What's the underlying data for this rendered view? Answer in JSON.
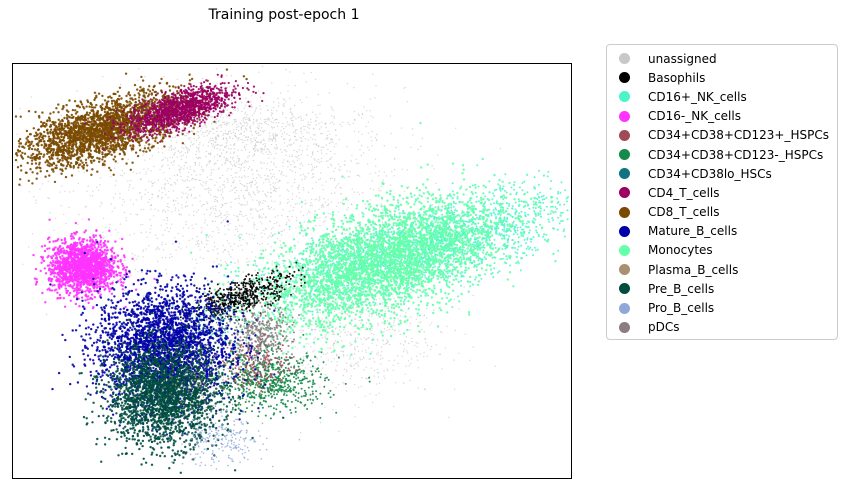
{
  "chart_data": {
    "type": "scatter",
    "title": "Training post-epoch 1",
    "xlabel": "",
    "ylabel": "",
    "axis_ticks": false,
    "grid": false,
    "legend_placement": "outside-right",
    "legend": [
      {
        "name": "unassigned",
        "color": "#c8c8c8"
      },
      {
        "name": "Basophils",
        "color": "#000000"
      },
      {
        "name": "CD16+_NK_cells",
        "color": "#4cf5c8"
      },
      {
        "name": "CD16-_NK_cells",
        "color": "#ff33ff"
      },
      {
        "name": "CD34+CD38+CD123+_HSPCs",
        "color": "#a04a55"
      },
      {
        "name": "CD34+CD38+CD123-_HSPCs",
        "color": "#168a4a"
      },
      {
        "name": "CD34+CD38lo_HSCs",
        "color": "#117280"
      },
      {
        "name": "CD4_T_cells",
        "color": "#9c0060"
      },
      {
        "name": "CD8_T_cells",
        "color": "#7a4a00"
      },
      {
        "name": "Mature_B_cells",
        "color": "#0000a8"
      },
      {
        "name": "Monocytes",
        "color": "#66ffaa"
      },
      {
        "name": "Plasma_B_cells",
        "color": "#a89070"
      },
      {
        "name": "Pre_B_cells",
        "color": "#004d40"
      },
      {
        "name": "Pro_B_cells",
        "color": "#8fa8d8"
      },
      {
        "name": "pDCs",
        "color": "#8a7e80"
      }
    ],
    "xlim": [
      0,
      100
    ],
    "ylim": [
      0,
      100
    ],
    "clusters": [
      {
        "name": "unassigned",
        "cx": 40,
        "cy": 70,
        "sx": 15,
        "sy": 12,
        "angle": 0,
        "n": 1800,
        "size": 0.7,
        "alpha": 0.7
      },
      {
        "name": "unassigned",
        "cx": 60,
        "cy": 35,
        "sx": 8,
        "sy": 8,
        "angle": 0,
        "n": 600,
        "size": 0.7,
        "alpha": 0.7
      },
      {
        "name": "unassigned",
        "cx": 42,
        "cy": 84,
        "sx": 9,
        "sy": 4,
        "angle": 0,
        "n": 500,
        "size": 0.7,
        "alpha": 0.7
      },
      {
        "name": "CD16+_NK_cells",
        "cx": 72,
        "cy": 55,
        "sx": 15,
        "sy": 4.5,
        "angle": 22,
        "n": 2600,
        "size": 1.0,
        "alpha": 0.85
      },
      {
        "name": "Monocytes",
        "cx": 66,
        "cy": 52,
        "sx": 12,
        "sy": 6,
        "angle": 30,
        "n": 3200,
        "size": 1.2,
        "alpha": 0.9
      },
      {
        "name": "CD8_T_cells",
        "cx": 16,
        "cy": 84,
        "sx": 8,
        "sy": 3.2,
        "angle": 25,
        "n": 2400,
        "size": 1.2,
        "alpha": 0.9
      },
      {
        "name": "CD4_T_cells",
        "cx": 30,
        "cy": 89,
        "sx": 5,
        "sy": 2,
        "angle": 25,
        "n": 1300,
        "size": 1.1,
        "alpha": 0.9
      },
      {
        "name": "CD16-_NK_cells",
        "cx": 12.5,
        "cy": 51,
        "sx": 3,
        "sy": 3.2,
        "angle": 0,
        "n": 1600,
        "size": 1.2,
        "alpha": 0.9
      },
      {
        "name": "Basophils",
        "cx": 41,
        "cy": 44,
        "sx": 5,
        "sy": 1.8,
        "angle": 28,
        "n": 500,
        "size": 1.0,
        "alpha": 0.9
      },
      {
        "name": "pDCs",
        "cx": 44,
        "cy": 34,
        "sx": 3,
        "sy": 4,
        "angle": 0,
        "n": 400,
        "size": 1.0,
        "alpha": 0.9
      },
      {
        "name": "CD34+CD38+CD123-_HSPCs",
        "cx": 46,
        "cy": 23,
        "sx": 5,
        "sy": 3.5,
        "angle": 0,
        "n": 600,
        "size": 1.0,
        "alpha": 0.9
      },
      {
        "name": "CD34+CD38+CD123+_HSPCs",
        "cx": 44,
        "cy": 27,
        "sx": 3,
        "sy": 3,
        "angle": 0,
        "n": 150,
        "size": 1.0,
        "alpha": 0.9
      },
      {
        "name": "Mature_B_cells",
        "cx": 27,
        "cy": 32,
        "sx": 6,
        "sy": 7,
        "angle": 0,
        "n": 2600,
        "size": 1.2,
        "alpha": 0.9
      },
      {
        "name": "Pre_B_cells",
        "cx": 27,
        "cy": 20,
        "sx": 5,
        "sy": 6,
        "angle": 0,
        "n": 2200,
        "size": 1.2,
        "alpha": 0.9
      },
      {
        "name": "Pro_B_cells",
        "cx": 37,
        "cy": 9,
        "sx": 4,
        "sy": 3,
        "angle": 0,
        "n": 250,
        "size": 0.8,
        "alpha": 0.8
      },
      {
        "name": "Plasma_B_cells",
        "cx": 34,
        "cy": 25,
        "sx": 4,
        "sy": 4,
        "angle": 0,
        "n": 120,
        "size": 0.8,
        "alpha": 0.8
      },
      {
        "name": "CD34+CD38lo_HSCs",
        "cx": 36,
        "cy": 38,
        "sx": 3,
        "sy": 2,
        "angle": 0,
        "n": 100,
        "size": 0.8,
        "alpha": 0.8
      }
    ]
  }
}
